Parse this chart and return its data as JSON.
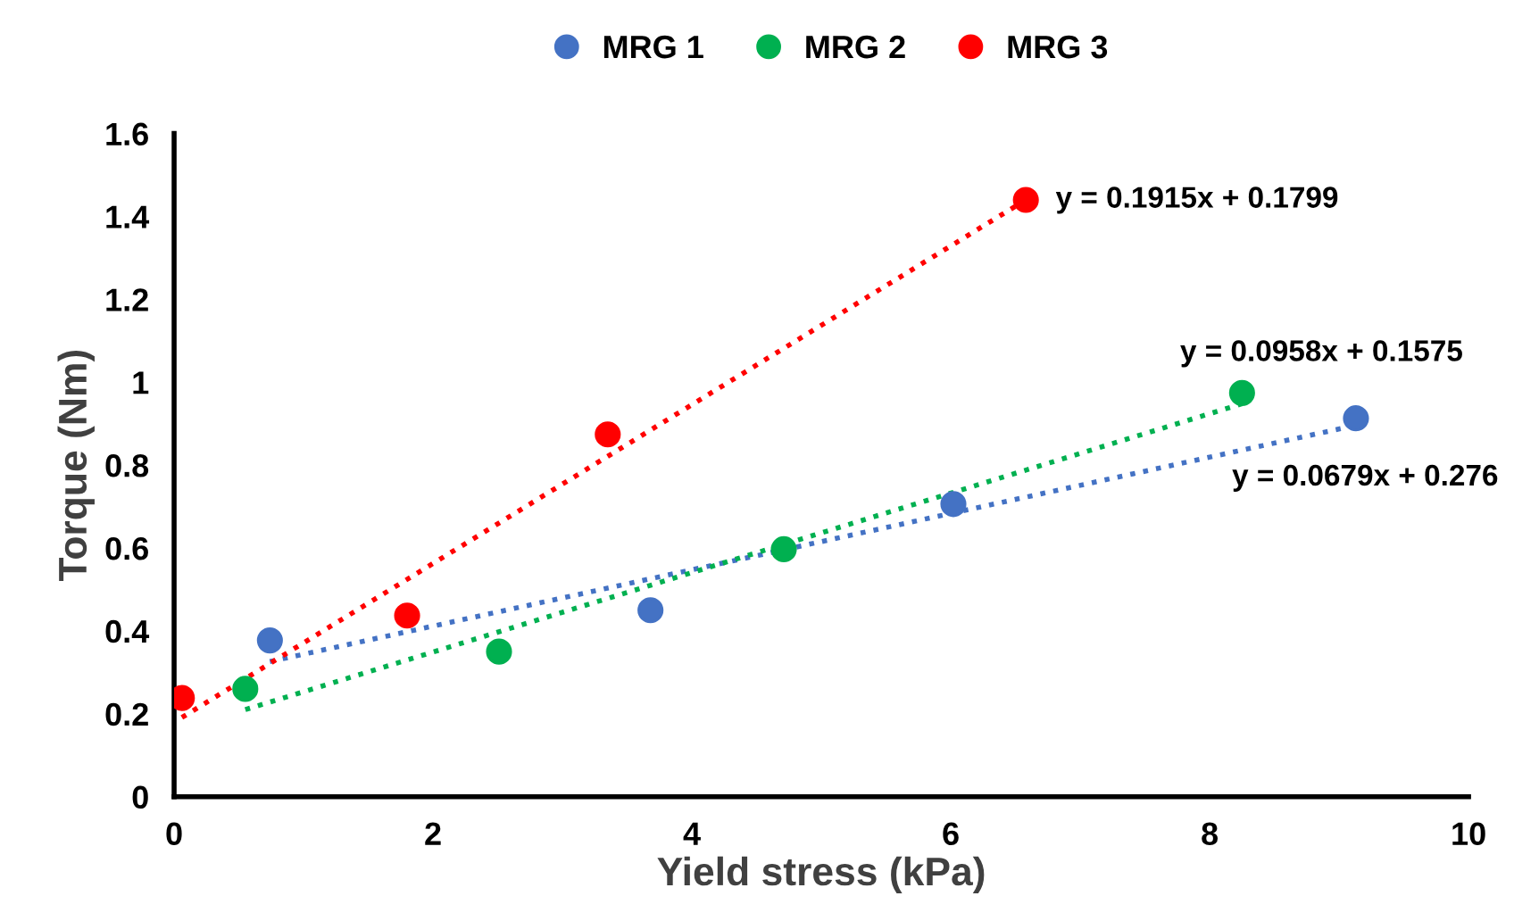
{
  "chart_data": {
    "type": "scatter",
    "xlabel": "Yield stress (kPa)",
    "ylabel": "Torque (Nm)",
    "xlim": [
      0,
      10
    ],
    "xticks": [
      0,
      2,
      4,
      6,
      8,
      10
    ],
    "ylim": [
      0,
      1.6
    ],
    "yticks": [
      0,
      0.2,
      0.4,
      0.6,
      0.8,
      1,
      1.2,
      1.4,
      1.6
    ],
    "grid": false,
    "legend": "top",
    "marker": "circle",
    "series": [
      {
        "name": "MRG 1",
        "color": "#4472c4",
        "x": [
          0.74,
          3.68,
          6.02,
          9.13
        ],
        "values": [
          0.377,
          0.45,
          0.706,
          0.913
        ]
      },
      {
        "name": "MRG 2",
        "color": "#00b050",
        "x": [
          0.55,
          2.51,
          4.71,
          8.25
        ],
        "values": [
          0.26,
          0.35,
          0.597,
          0.974
        ]
      },
      {
        "name": "MRG 3",
        "color": "#ff0000",
        "x": [
          0.06,
          1.8,
          3.35,
          6.58
        ],
        "values": [
          0.238,
          0.437,
          0.874,
          1.44
        ]
      },
      {
        "type": "line",
        "marker": "none",
        "color": "#4472c4",
        "line_style": "dotted",
        "x": [
          0.74,
          9.13
        ],
        "values": [
          0.326,
          0.896
        ]
      },
      {
        "type": "line",
        "marker": "none",
        "color": "#00b050",
        "line_style": "dotted",
        "x": [
          0.55,
          8.25
        ],
        "values": [
          0.21,
          0.948
        ]
      },
      {
        "type": "line",
        "marker": "none",
        "color": "#ff0000",
        "line_style": "dotted",
        "x": [
          0.06,
          6.58
        ],
        "values": [
          0.191,
          1.44
        ]
      }
    ],
    "annotations": [
      {
        "text": "y = 0.1915x + 0.1799",
        "x": 6.58,
        "y": 1.44
      },
      {
        "text": "y = 0.0958x + 0.1575",
        "x": 8.25,
        "y": 0.974
      },
      {
        "text": "y = 0.0679x + 0.276",
        "x": 9.13,
        "y": 0.913
      }
    ]
  }
}
